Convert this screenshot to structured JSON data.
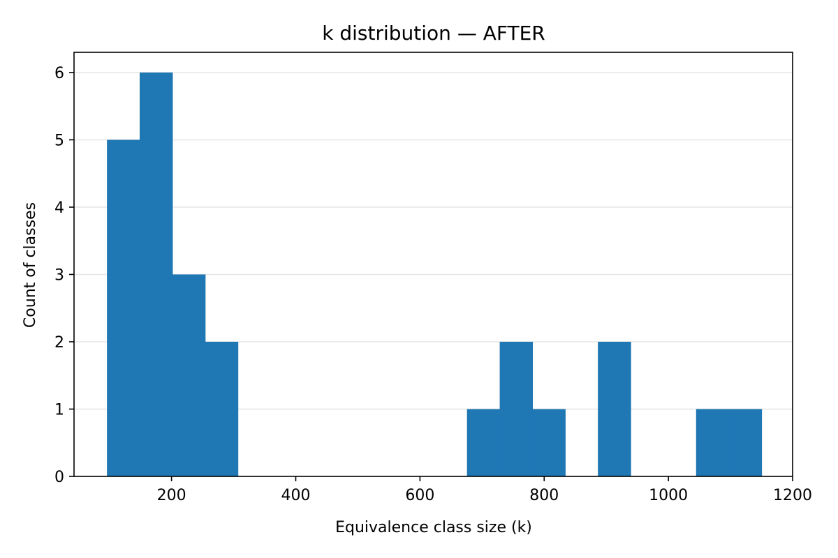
{
  "chart_data": {
    "type": "bar",
    "title": "k distribution — AFTER",
    "xlabel": "Equivalence class size (k)",
    "ylabel": "Count of classes",
    "xlim": [
      43,
      1200
    ],
    "ylim": [
      0,
      6.3
    ],
    "x_ticks": [
      200,
      400,
      600,
      800,
      1000,
      1200
    ],
    "y_ticks": [
      0,
      1,
      2,
      3,
      4,
      5,
      6
    ],
    "grid": {
      "y": true,
      "x": false
    },
    "bar_color": "#1f77b4",
    "bins": [
      {
        "start": 96.0,
        "end": 148.7,
        "count": 5
      },
      {
        "start": 148.7,
        "end": 201.4,
        "count": 6
      },
      {
        "start": 201.4,
        "end": 254.1,
        "count": 3
      },
      {
        "start": 254.1,
        "end": 306.8,
        "count": 2
      },
      {
        "start": 306.8,
        "end": 359.5,
        "count": 0
      },
      {
        "start": 359.5,
        "end": 412.2,
        "count": 0
      },
      {
        "start": 412.2,
        "end": 464.9,
        "count": 0
      },
      {
        "start": 464.9,
        "end": 517.6,
        "count": 0
      },
      {
        "start": 517.6,
        "end": 570.3,
        "count": 0
      },
      {
        "start": 570.3,
        "end": 623.0,
        "count": 0
      },
      {
        "start": 623.0,
        "end": 675.7,
        "count": 0
      },
      {
        "start": 675.7,
        "end": 728.4,
        "count": 1
      },
      {
        "start": 728.4,
        "end": 781.1,
        "count": 2
      },
      {
        "start": 781.1,
        "end": 833.8,
        "count": 1
      },
      {
        "start": 833.8,
        "end": 886.5,
        "count": 0
      },
      {
        "start": 886.5,
        "end": 939.2,
        "count": 2
      },
      {
        "start": 939.2,
        "end": 991.9,
        "count": 0
      },
      {
        "start": 991.9,
        "end": 1044.6,
        "count": 0
      },
      {
        "start": 1044.6,
        "end": 1097.3,
        "count": 1
      },
      {
        "start": 1097.3,
        "end": 1150.0,
        "count": 1
      }
    ]
  }
}
